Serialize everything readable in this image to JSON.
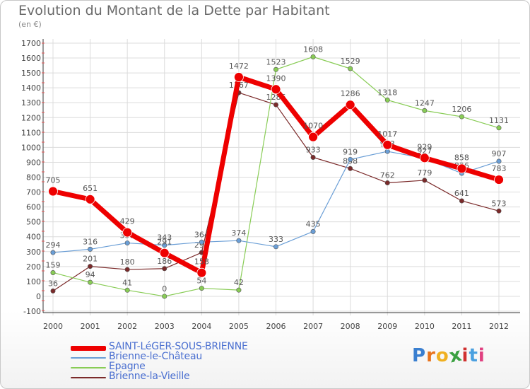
{
  "header": {
    "title": "Evolution du Montant de la Dette par Habitant",
    "subtitle": "(en €)"
  },
  "logo": {
    "text": "Proxiti",
    "colors": [
      "#3a7fd0",
      "#e8731c",
      "#f0b020",
      "#3aa040",
      "#d03030",
      "#4aa0e0",
      "#e04080"
    ]
  },
  "chart_data": {
    "type": "line",
    "x": [
      "2000",
      "2001",
      "2002",
      "2003",
      "2004",
      "2005",
      "2006",
      "2007",
      "2008",
      "2009",
      "2010",
      "2011",
      "2012"
    ],
    "ylim": [
      -100,
      1700
    ],
    "yticks": [
      "-100",
      "0",
      "100",
      "200",
      "300",
      "400",
      "500",
      "600",
      "700",
      "800",
      "900",
      "1000",
      "1100",
      "1200",
      "1300",
      "1400",
      "1500",
      "1600",
      "1700"
    ],
    "grid": true,
    "legend_position": "bottom-left",
    "series": [
      {
        "name": "Brienne-la-Vieille",
        "color": "#7b2a2a",
        "values": [
          36,
          201,
          180,
          186,
          294,
          1367,
          1286,
          933,
          858,
          762,
          779,
          641,
          573
        ],
        "labels": [
          "36",
          "201",
          "180",
          "186",
          "294",
          "1367",
          "1286",
          "933",
          "858",
          "762",
          "779",
          "641",
          "573"
        ]
      },
      {
        "name": "Epagne",
        "color": "#88cc55",
        "values": [
          159,
          94,
          41,
          0,
          54,
          42,
          1523,
          1608,
          1529,
          1318,
          1247,
          1206,
          1131
        ],
        "labels": [
          "159",
          "94",
          "41",
          "0",
          "54",
          "42",
          "1523",
          "1608",
          "1529",
          "1318",
          "1247",
          "1206",
          "1131"
        ]
      },
      {
        "name": "Brienne-le-Château",
        "color": "#6a9ed6",
        "values": [
          294,
          316,
          358,
          343,
          364,
          374,
          333,
          435,
          919,
          973,
          927,
          826,
          907
        ],
        "labels": [
          "294",
          "316",
          "358",
          "343",
          "364",
          "374",
          "333",
          "435",
          "919",
          "973",
          "927",
          "826",
          "907"
        ]
      },
      {
        "name": "SAINT-LéGER-SOUS-BRIENNE",
        "color": "#ee0000",
        "values": [
          705,
          651,
          429,
          291,
          158,
          1472,
          1390,
          1070,
          1286,
          1017,
          929,
          858,
          783
        ],
        "labels": [
          "705",
          "651",
          "429",
          "291",
          "158",
          "1472",
          "1390",
          "1070",
          "1286",
          "1017",
          "929",
          "858",
          "783"
        ]
      }
    ]
  }
}
